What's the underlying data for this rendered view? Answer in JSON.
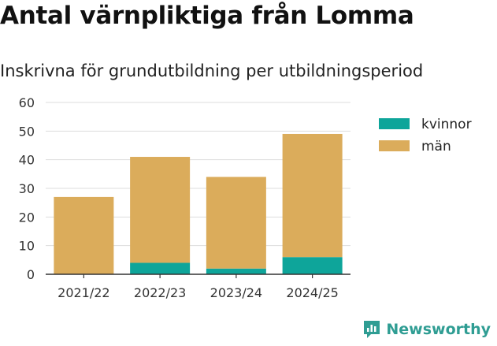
{
  "title": "Antal värnpliktiga från Lomma",
  "subtitle": "Inskrivna för grundutbildning per utbildningsperiod",
  "brand": "Newsworthy",
  "colors": {
    "kvinnor": "#0ea59a",
    "man": "#dbac5b",
    "grid": "#dddddd",
    "axis": "#333333",
    "brand": "#2f9d93"
  },
  "chart_data": {
    "type": "bar",
    "stacked": true,
    "categories": [
      "2021/22",
      "2022/23",
      "2023/24",
      "2024/25"
    ],
    "series": [
      {
        "name": "kvinnor",
        "values": [
          0,
          4,
          2,
          6
        ]
      },
      {
        "name": "män",
        "values": [
          27,
          37,
          32,
          43
        ]
      }
    ],
    "ylim": [
      0,
      60
    ],
    "yticks": [
      0,
      10,
      20,
      30,
      40,
      50,
      60
    ],
    "grid": true,
    "legend": "right"
  }
}
